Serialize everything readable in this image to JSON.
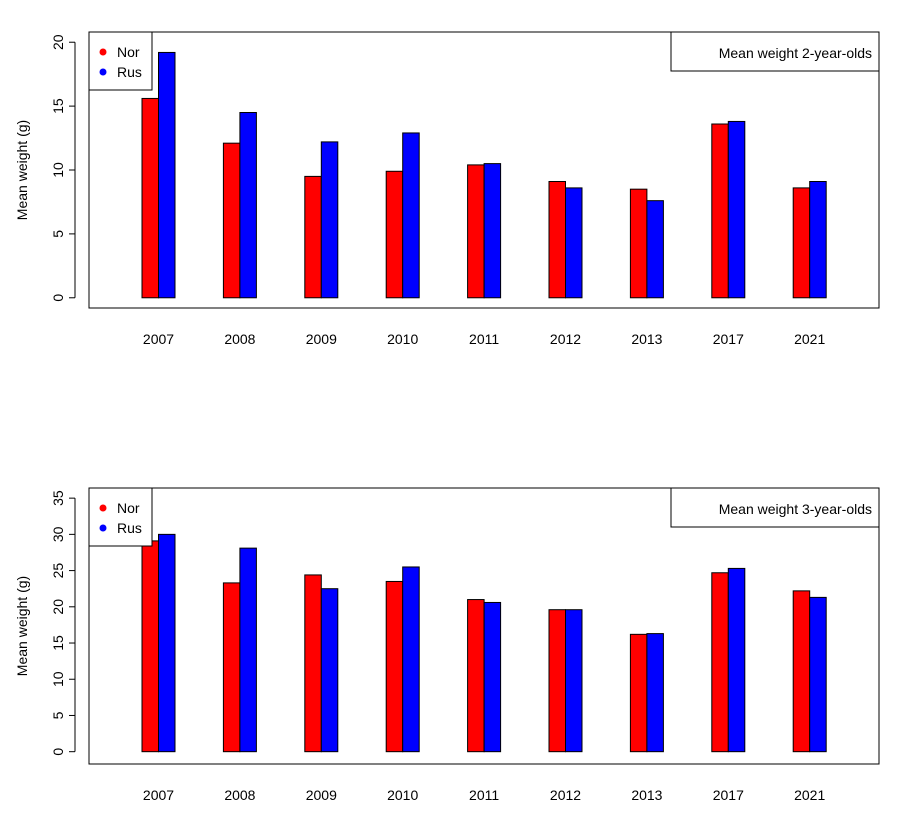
{
  "chart_data": [
    {
      "type": "bar",
      "categories": [
        "2007",
        "2008",
        "2009",
        "2010",
        "2011",
        "2012",
        "2013",
        "2017",
        "2021"
      ],
      "series": [
        {
          "name": "Nor",
          "color": "#ff0000",
          "values": [
            15.6,
            12.1,
            9.5,
            9.9,
            10.4,
            9.1,
            8.5,
            13.6,
            8.6
          ]
        },
        {
          "name": "Rus",
          "color": "#0000ff",
          "values": [
            19.2,
            14.5,
            12.2,
            12.9,
            10.5,
            8.6,
            7.6,
            13.8,
            9.1
          ]
        }
      ],
      "ylabel": "Mean weight (g)",
      "yticks": [
        0,
        5,
        10,
        15,
        20
      ],
      "ylim": [
        -0.8,
        20.8
      ],
      "legend_position": "top-left",
      "title_box": "Mean weight 2-year-olds",
      "title_box_position": "top-right",
      "grid": false
    },
    {
      "type": "bar",
      "categories": [
        "2007",
        "2008",
        "2009",
        "2010",
        "2011",
        "2012",
        "2013",
        "2017",
        "2021"
      ],
      "series": [
        {
          "name": "Nor",
          "color": "#ff0000",
          "values": [
            29.1,
            23.3,
            24.4,
            23.5,
            21.0,
            19.6,
            16.2,
            24.7,
            22.2
          ]
        },
        {
          "name": "Rus",
          "color": "#0000ff",
          "values": [
            30.0,
            28.1,
            22.5,
            25.5,
            20.6,
            19.6,
            16.3,
            25.3,
            21.3
          ]
        }
      ],
      "ylabel": "Mean weight (g)",
      "yticks": [
        0,
        5,
        10,
        15,
        20,
        25,
        30,
        35
      ],
      "ylim": [
        -1.7,
        36.4
      ],
      "legend_position": "top-left",
      "title_box": "Mean weight 3-year-olds",
      "title_box_position": "top-right",
      "grid": false
    }
  ]
}
